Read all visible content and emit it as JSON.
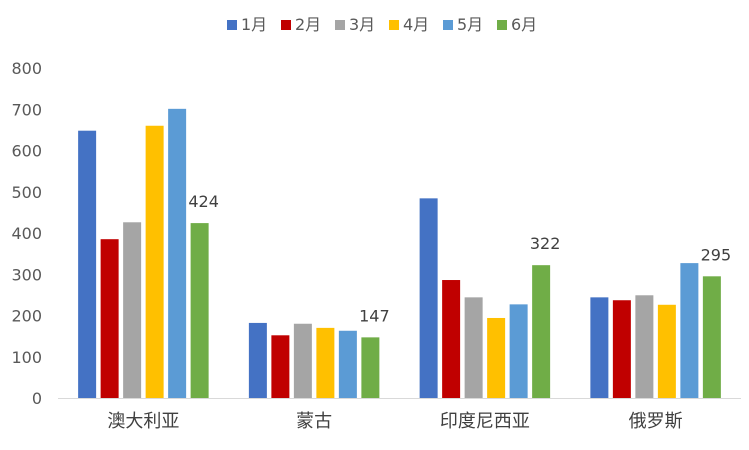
{
  "chart_data": {
    "type": "bar",
    "categories": [
      "澳大利亚",
      "蒙古",
      "印度尼西亚",
      "俄罗斯"
    ],
    "series": [
      {
        "name": "1月",
        "color": "#4472C4",
        "values": [
          648,
          182,
          484,
          244
        ]
      },
      {
        "name": "2月",
        "color": "#C00000",
        "values": [
          385,
          152,
          286,
          237
        ]
      },
      {
        "name": "3月",
        "color": "#A5A5A5",
        "values": [
          426,
          180,
          244,
          249
        ]
      },
      {
        "name": "4月",
        "color": "#FFC000",
        "values": [
          660,
          170,
          194,
          226
        ]
      },
      {
        "name": "5月",
        "color": "#5B9BD5",
        "values": [
          701,
          163,
          227,
          327
        ]
      },
      {
        "name": "6月",
        "color": "#70AD47",
        "values": [
          424,
          147,
          322,
          295
        ]
      }
    ],
    "data_labels_series": "6月",
    "ylim": [
      0,
      800
    ],
    "yticks": [
      0,
      100,
      200,
      300,
      400,
      500,
      600,
      700,
      800
    ],
    "grid": false,
    "legend_position": "top"
  }
}
